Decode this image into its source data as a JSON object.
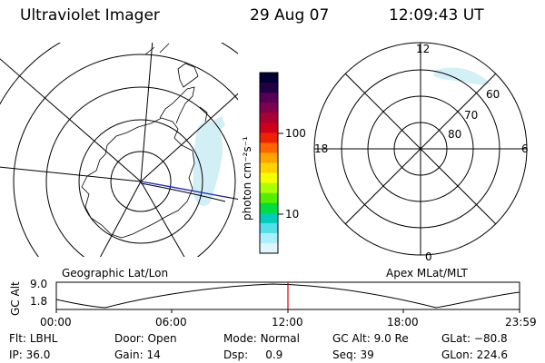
{
  "header": {
    "instrument": "Ultraviolet Imager",
    "date": "29 Aug 07",
    "time": "12:09:43 UT"
  },
  "colorbar": {
    "unit_label": "photon cm⁻²s⁻¹",
    "ticks": [
      "100",
      "10"
    ],
    "colors": [
      "#000033",
      "#220044",
      "#550055",
      "#800050",
      "#aa0033",
      "#d0001a",
      "#ee2200",
      "#ff6600",
      "#ffa500",
      "#ffd200",
      "#f4ff00",
      "#aaff00",
      "#55ee00",
      "#00dd40",
      "#00ccbb",
      "#55dde8",
      "#aaeeff",
      "#dff6ff"
    ]
  },
  "left_map": {
    "label": "Geographic Lat/Lon"
  },
  "right_map": {
    "label": "Apex MLat/MLT",
    "mlt_labels": [
      "12",
      "18",
      "6",
      "0"
    ],
    "mlat_labels": [
      "60",
      "70",
      "80"
    ]
  },
  "altitude_plot": {
    "ylabel": "GC Alt",
    "yticks": [
      "9.0",
      "1.8"
    ],
    "xticks": [
      "00:00",
      "06:00",
      "12:00",
      "18:00",
      "23:59"
    ],
    "current_time_marker_color": "#dd0000"
  },
  "status": {
    "filter_label": "Flt:",
    "filter": "LBHL",
    "door_label": "Door:",
    "door": "Open",
    "mode_label": "Mode:",
    "mode": "Normal",
    "gcalt_label": "GC Alt:",
    "gcalt": "9.0 Re",
    "glat_label": "GLat:",
    "glat": "−80.8",
    "ip_label": "IP:",
    "ip": "36.0",
    "gain_label": "Gain:",
    "gain": "14",
    "dsp_label": "Dsp:",
    "dsp": "0.9",
    "seq_label": "Seq:",
    "seq": "39",
    "glon_label": "GLon:",
    "glon": "224.6"
  }
}
